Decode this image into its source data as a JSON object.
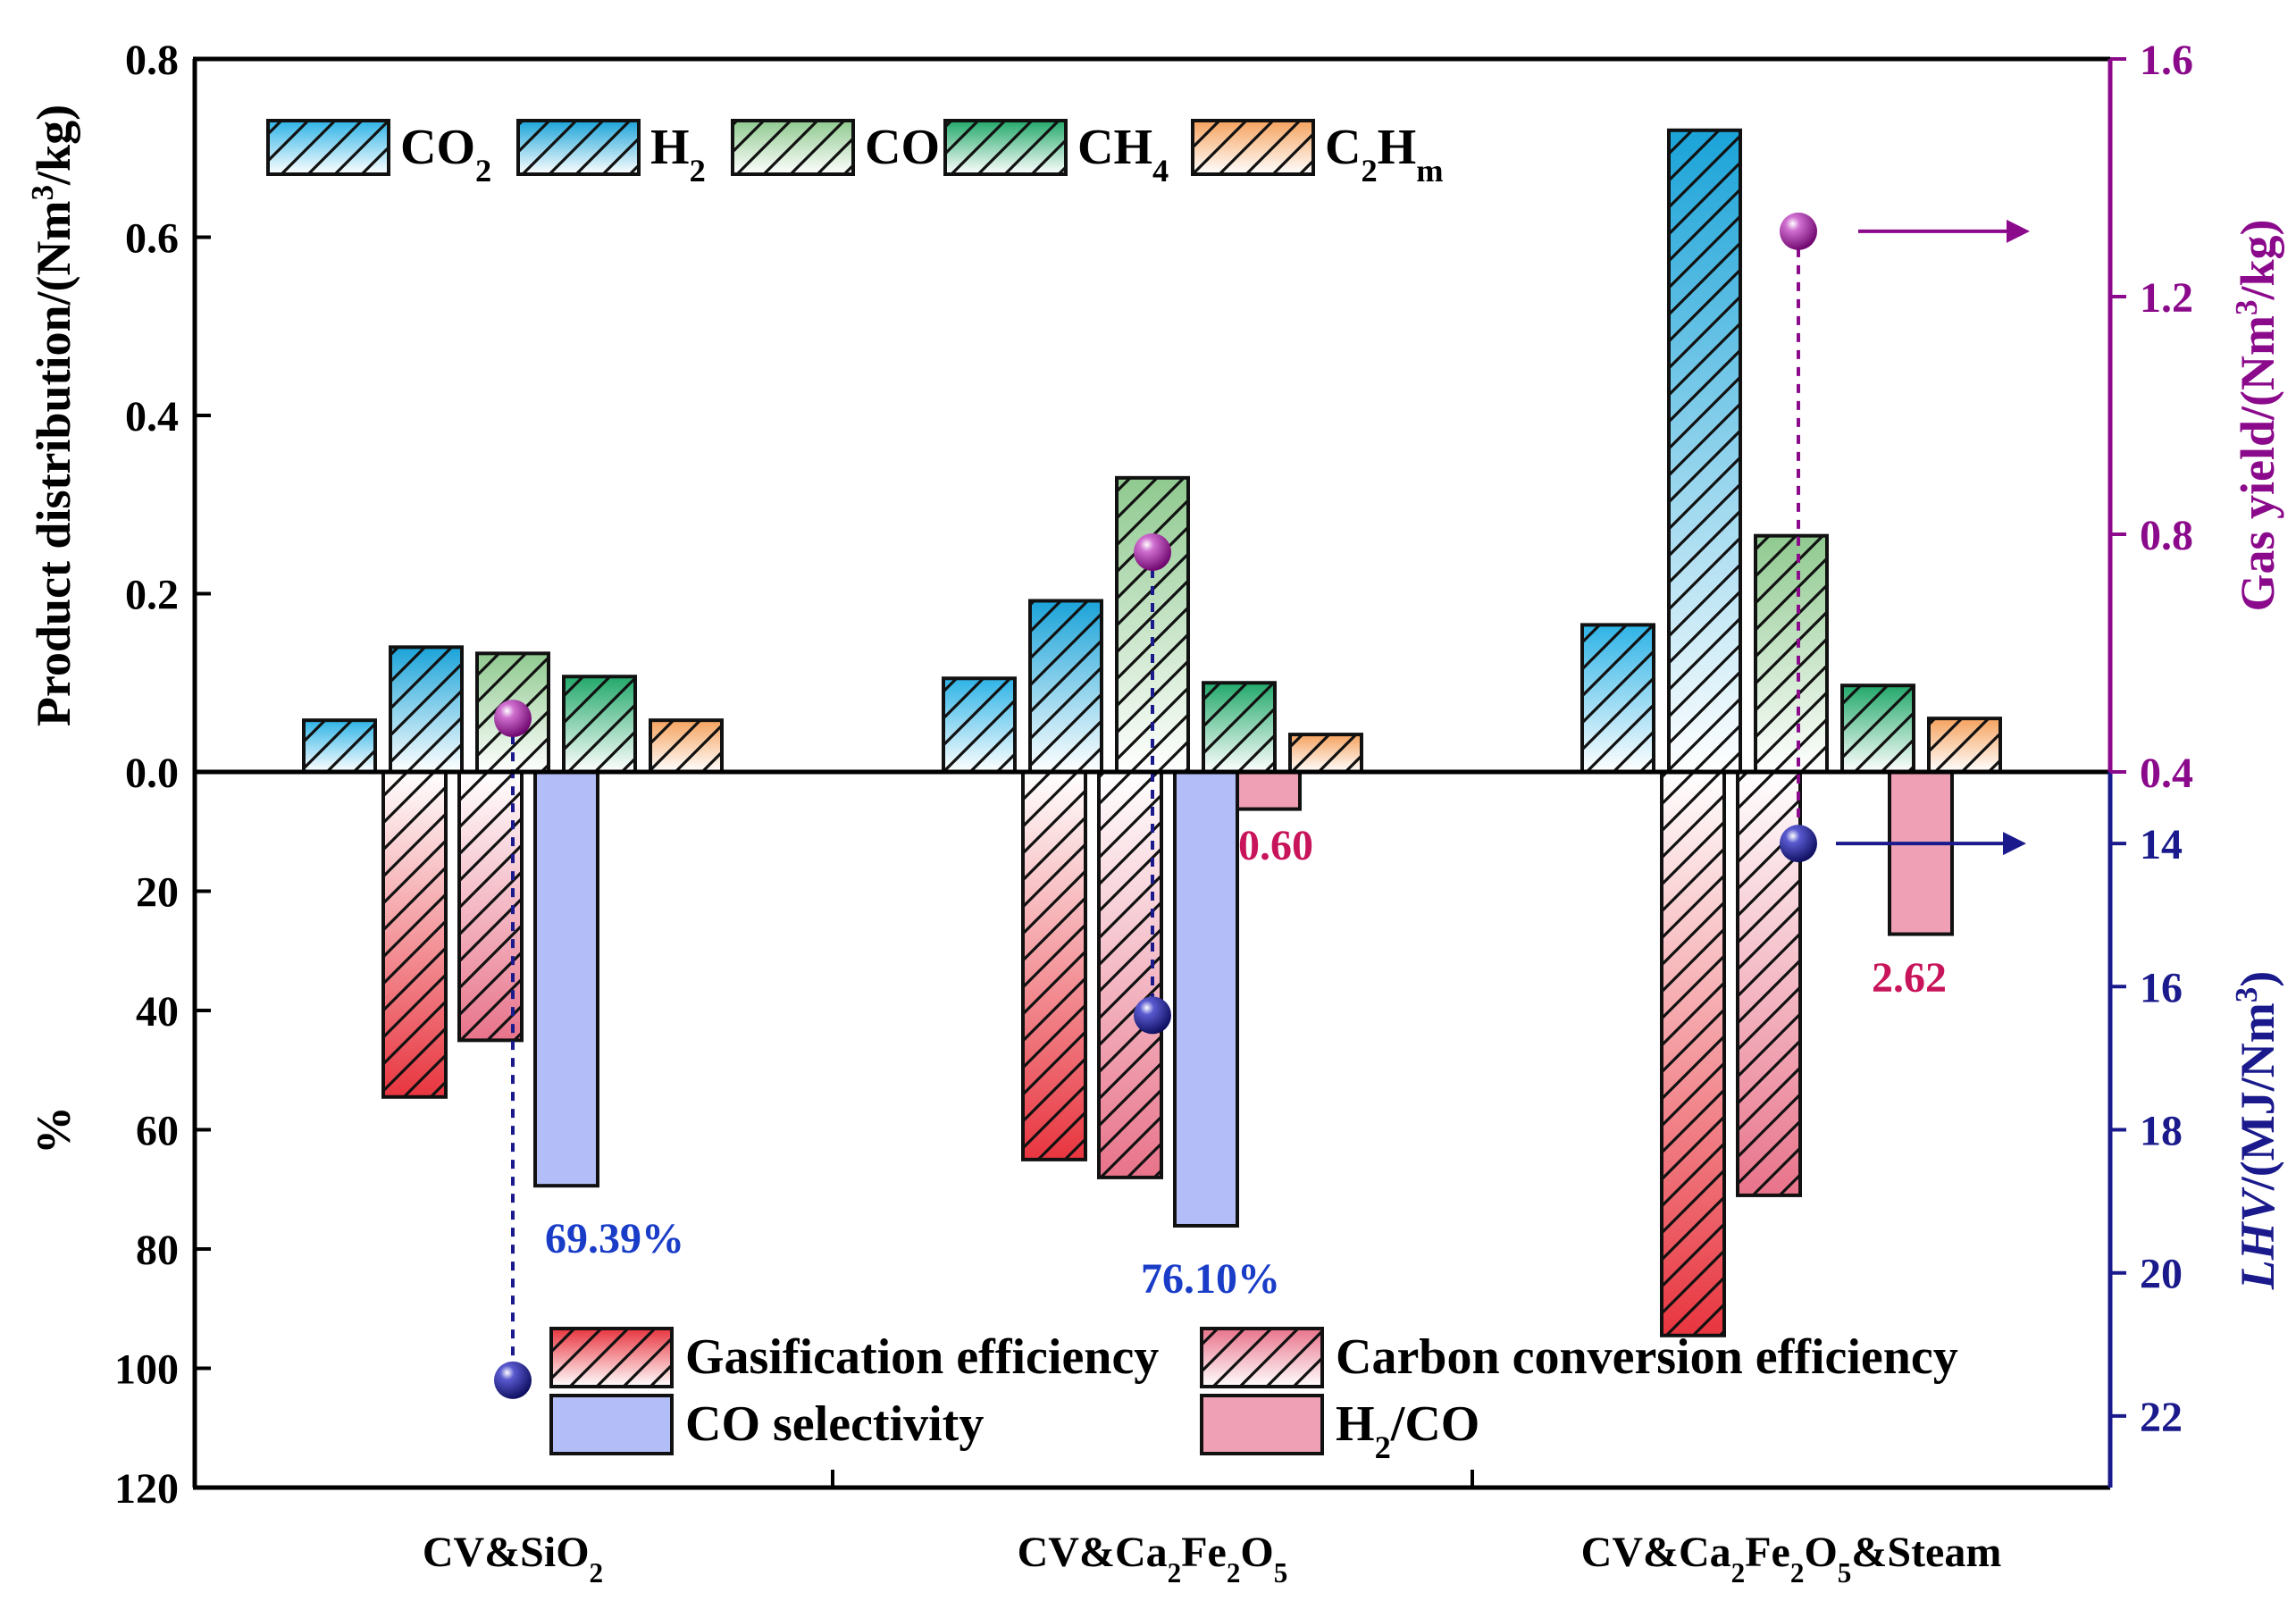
{
  "chart_data": {
    "type": "bar",
    "categories": [
      "CV&SiO2",
      "CV&Ca2Fe2O5",
      "CV&Ca2Fe2O5&Steam"
    ],
    "category_labels": [
      {
        "parts": [
          [
            "CV&SiO",
            ""
          ],
          [
            "2",
            "sub"
          ]
        ]
      },
      {
        "parts": [
          [
            "CV&Ca",
            ""
          ],
          [
            "2",
            "sub"
          ],
          [
            "Fe",
            ""
          ],
          [
            "2",
            "sub"
          ],
          [
            "O",
            ""
          ],
          [
            "5",
            "sub"
          ]
        ]
      },
      {
        "parts": [
          [
            "CV&Ca",
            ""
          ],
          [
            "2",
            "sub"
          ],
          [
            "Fe",
            ""
          ],
          [
            "2",
            "sub"
          ],
          [
            "O",
            ""
          ],
          [
            "5",
            "sub"
          ],
          [
            "&Steam",
            ""
          ]
        ]
      }
    ],
    "top_panel": {
      "ylabel_parts": [
        [
          "Product distribution/(Nm",
          ""
        ],
        [
          "3",
          "sup"
        ],
        [
          "/kg)",
          ""
        ]
      ],
      "ylim": [
        0,
        0.8
      ],
      "ticks": [
        "0.0",
        "0.2",
        "0.4",
        "0.6",
        "0.8"
      ],
      "series": [
        {
          "name": "CO2",
          "label_parts": [
            [
              "CO",
              ""
            ],
            [
              "2",
              "sub"
            ]
          ],
          "color": "#2EB3E6",
          "values": [
            0.058,
            0.105,
            0.165
          ]
        },
        {
          "name": "H2",
          "label_parts": [
            [
              "H",
              ""
            ],
            [
              "2",
              "sub"
            ]
          ],
          "color": "#1AA3D8",
          "values": [
            0.14,
            0.192,
            0.72
          ]
        },
        {
          "name": "CO",
          "label_parts": [
            [
              "CO",
              ""
            ]
          ],
          "color": "#8FC98F",
          "values": [
            0.133,
            0.33,
            0.265
          ]
        },
        {
          "name": "CH4",
          "label_parts": [
            [
              "CH",
              ""
            ],
            [
              "4",
              "sub"
            ]
          ],
          "color": "#22A86A",
          "values": [
            0.107,
            0.1,
            0.097
          ]
        },
        {
          "name": "C2Hm",
          "label_parts": [
            [
              "C",
              ""
            ],
            [
              "2",
              "sub"
            ],
            [
              "H",
              ""
            ],
            [
              "m",
              "sub"
            ]
          ],
          "color": "#F5A25E",
          "values": [
            0.058,
            0.042,
            0.06
          ]
        }
      ],
      "gas_yield": {
        "ylabel_parts": [
          [
            "Gas yield/(Nm",
            ""
          ],
          [
            "3",
            "sup"
          ],
          [
            "/kg)",
            ""
          ]
        ],
        "ylim": [
          0.4,
          1.6
        ],
        "ticks": [
          "0.4",
          "0.8",
          "1.2",
          "1.6"
        ],
        "values": [
          0.49,
          0.77,
          1.31
        ],
        "color": "#8B0A8B"
      }
    },
    "bottom_panel": {
      "ylabel": "%",
      "ylim": [
        0,
        120
      ],
      "ticks": [
        "20",
        "40",
        "60",
        "80",
        "100",
        "120"
      ],
      "series": [
        {
          "name": "Gasification efficiency",
          "color": "#E8353F",
          "values": [
            54.5,
            65,
            94.5
          ]
        },
        {
          "name": "Carbon conversion efficiency",
          "color": "#E8738A",
          "values": [
            45,
            68,
            71
          ]
        },
        {
          "name": "CO selectivity",
          "color": "#B3BEF8",
          "values": [
            69.39,
            76.1,
            null
          ]
        },
        {
          "name": "H2/CO",
          "label_parts": [
            [
              "H",
              ""
            ],
            [
              "2",
              "sub"
            ],
            [
              "/CO",
              ""
            ]
          ],
          "color": "#F0A0B5",
          "values": [
            null,
            0.6,
            2.62
          ]
        }
      ],
      "annotations": [
        "69.39%",
        "76.10%",
        "0.60",
        "2.62"
      ],
      "lhv": {
        "ylabel_parts": [
          [
            "LHV",
            "i"
          ],
          [
            "/(MJ/Nm",
            ""
          ],
          [
            "3",
            "sup"
          ],
          [
            ")",
            ""
          ]
        ],
        "ylim": [
          13,
          23
        ],
        "ticks": [
          "14",
          "16",
          "18",
          "20",
          "22"
        ],
        "values": [
          21.5,
          16.4,
          14.0
        ],
        "color": "#1A1A8C"
      }
    }
  }
}
